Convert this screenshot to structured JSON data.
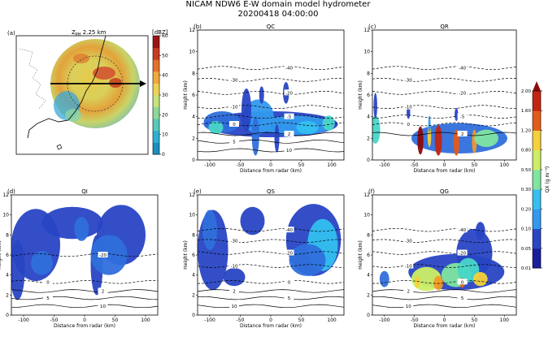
{
  "figure": {
    "title_line1": "NICAM NDW6 E-W domain model hydrometer",
    "title_line2": "20200418 04:00:00"
  },
  "colorbar": {
    "label": "QX (g m⁻³)",
    "ticks": [
      "0.01",
      "0.05",
      "0.10",
      "0.20",
      "0.30",
      "0.50",
      "0.80",
      "1.20",
      "1.60",
      "2.00"
    ],
    "colors": [
      "#1a1d9c",
      "#2845c4",
      "#2f6fdc",
      "#3399ee",
      "#33c0f0",
      "#49d6c8",
      "#7fe5a0",
      "#cbee66",
      "#f5d13a",
      "#f29a24",
      "#e35b1a",
      "#c32512",
      "#8d0a0a"
    ]
  },
  "map": {
    "panel_label": "(a)",
    "title": "Z",
    "title_sub": "PH",
    "title_rest": " 2.25 km",
    "cbar_label": "[dBZ]",
    "cbar_ticks": [
      "0",
      "10",
      "20",
      "30",
      "40",
      "50",
      "60"
    ]
  },
  "chart_data": [
    {
      "type": "heatmap",
      "panel": "(b)",
      "title": "QC",
      "xlabel": "Distance from radar (km)",
      "ylabel": "Height (km)",
      "xlim": [
        -120,
        120
      ],
      "ylim": [
        0,
        12
      ],
      "xticks": [
        "-100",
        "-50",
        "0",
        "50",
        "100"
      ],
      "yticks": [
        "0",
        "2",
        "4",
        "6",
        "8",
        "10",
        "12"
      ],
      "temperature_contours_C": [
        {
          "label": "-40",
          "height_km": 8.5
        },
        {
          "label": "-30",
          "height_km": 7.4
        },
        {
          "label": "-20",
          "height_km": 6.2
        },
        {
          "label": "-10",
          "height_km": 4.9
        },
        {
          "label": "-5",
          "height_km": 4.0
        },
        {
          "label": "0",
          "height_km": 3.3
        },
        {
          "label": "2",
          "height_km": 2.4
        },
        {
          "label": "5",
          "height_km": 1.7
        },
        {
          "label": "10",
          "height_km": 0.9
        }
      ],
      "max_value_gm3": 0.5
    },
    {
      "type": "heatmap",
      "panel": "(c)",
      "title": "QR",
      "xlabel": "Distance from radar (km)",
      "ylabel": "Height (km)",
      "xlim": [
        -120,
        120
      ],
      "ylim": [
        0,
        12
      ],
      "xticks": [
        "-100",
        "-50",
        "0",
        "50",
        "100"
      ],
      "yticks": [
        "0",
        "2",
        "4",
        "6",
        "8",
        "10",
        "12"
      ],
      "temperature_contours_C": [
        {
          "label": "-40",
          "height_km": 8.5
        },
        {
          "label": "-30",
          "height_km": 7.4
        },
        {
          "label": "-20",
          "height_km": 6.2
        },
        {
          "label": "-10",
          "height_km": 4.9
        },
        {
          "label": "-5",
          "height_km": 4.0
        },
        {
          "label": "0",
          "height_km": 3.3
        },
        {
          "label": "2",
          "height_km": 2.4
        }
      ],
      "max_value_gm3": 2.0
    },
    {
      "type": "heatmap",
      "panel": "(d)",
      "title": "QI",
      "xlabel": "Distance from radar (km)",
      "ylabel": "Height (km)",
      "xlim": [
        -120,
        120
      ],
      "ylim": [
        0,
        12
      ],
      "xticks": [
        "-100",
        "-50",
        "0",
        "50",
        "100"
      ],
      "yticks": [
        "0",
        "2",
        "4",
        "6",
        "8",
        "10",
        "12"
      ],
      "temperature_contours_C": [
        {
          "label": "-20",
          "height_km": 6.0
        },
        {
          "label": "0",
          "height_km": 3.3
        },
        {
          "label": "2",
          "height_km": 2.4
        },
        {
          "label": "5",
          "height_km": 1.7
        },
        {
          "label": "10",
          "height_km": 0.9
        }
      ],
      "max_value_gm3": 0.1
    },
    {
      "type": "heatmap",
      "panel": "(e)",
      "title": "QS",
      "xlabel": "Distance from radar (km)",
      "ylabel": "Height (km)",
      "xlim": [
        -120,
        120
      ],
      "ylim": [
        0,
        12
      ],
      "xticks": [
        "-100",
        "-50",
        "0",
        "50",
        "100"
      ],
      "yticks": [
        "0",
        "2",
        "4",
        "6",
        "8",
        "10",
        "12"
      ],
      "temperature_contours_C": [
        {
          "label": "-40",
          "height_km": 8.5
        },
        {
          "label": "-30",
          "height_km": 7.4
        },
        {
          "label": "-20",
          "height_km": 6.2
        },
        {
          "label": "-10",
          "height_km": 4.9
        },
        {
          "label": "0",
          "height_km": 3.3
        },
        {
          "label": "2",
          "height_km": 2.4
        },
        {
          "label": "5",
          "height_km": 1.7
        },
        {
          "label": "10",
          "height_km": 0.9
        }
      ],
      "max_value_gm3": 0.3
    },
    {
      "type": "heatmap",
      "panel": "(f)",
      "title": "QG",
      "xlabel": "Distance from radar (km)",
      "ylabel": "Height (km)",
      "xlim": [
        -120,
        120
      ],
      "ylim": [
        0,
        12
      ],
      "xticks": [
        "-100",
        "-50",
        "0",
        "50",
        "100"
      ],
      "yticks": [
        "0",
        "2",
        "4",
        "6",
        "8",
        "10",
        "12"
      ],
      "temperature_contours_C": [
        {
          "label": "-40",
          "height_km": 8.5
        },
        {
          "label": "-30",
          "height_km": 7.4
        },
        {
          "label": "-20",
          "height_km": 6.2
        },
        {
          "label": "-10",
          "height_km": 4.9
        },
        {
          "label": "0",
          "height_km": 3.3
        },
        {
          "label": "2",
          "height_km": 2.4
        },
        {
          "label": "5",
          "height_km": 1.7
        },
        {
          "label": "10",
          "height_km": 0.9
        }
      ],
      "max_value_gm3": 1.6
    }
  ]
}
